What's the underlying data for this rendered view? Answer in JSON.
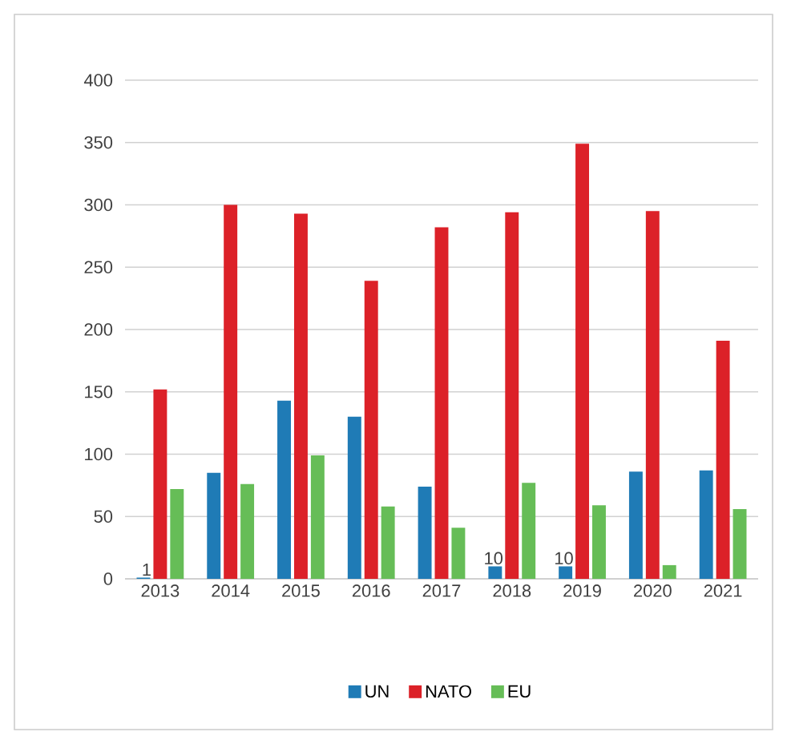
{
  "chart_data": {
    "type": "bar",
    "categories": [
      "2013",
      "2014",
      "2015",
      "2016",
      "2017",
      "2018",
      "2019",
      "2020",
      "2021"
    ],
    "series": [
      {
        "name": "UN",
        "color": "#1f7bb6",
        "values": [
          1,
          85,
          143,
          130,
          74,
          10,
          10,
          86,
          87
        ],
        "value_labels": [
          "1",
          null,
          null,
          null,
          null,
          "10",
          "10",
          null,
          null
        ]
      },
      {
        "name": "NATO",
        "color": "#dc2128",
        "values": [
          152,
          300,
          293,
          239,
          282,
          294,
          349,
          295,
          191
        ]
      },
      {
        "name": "EU",
        "color": "#66bd57",
        "values": [
          72,
          76,
          99,
          58,
          41,
          77,
          59,
          11,
          56
        ]
      }
    ],
    "ylim": [
      0,
      400
    ],
    "yticks": [
      0,
      50,
      100,
      150,
      200,
      250,
      300,
      350,
      400
    ],
    "grid": "y",
    "legend": "bottom"
  }
}
